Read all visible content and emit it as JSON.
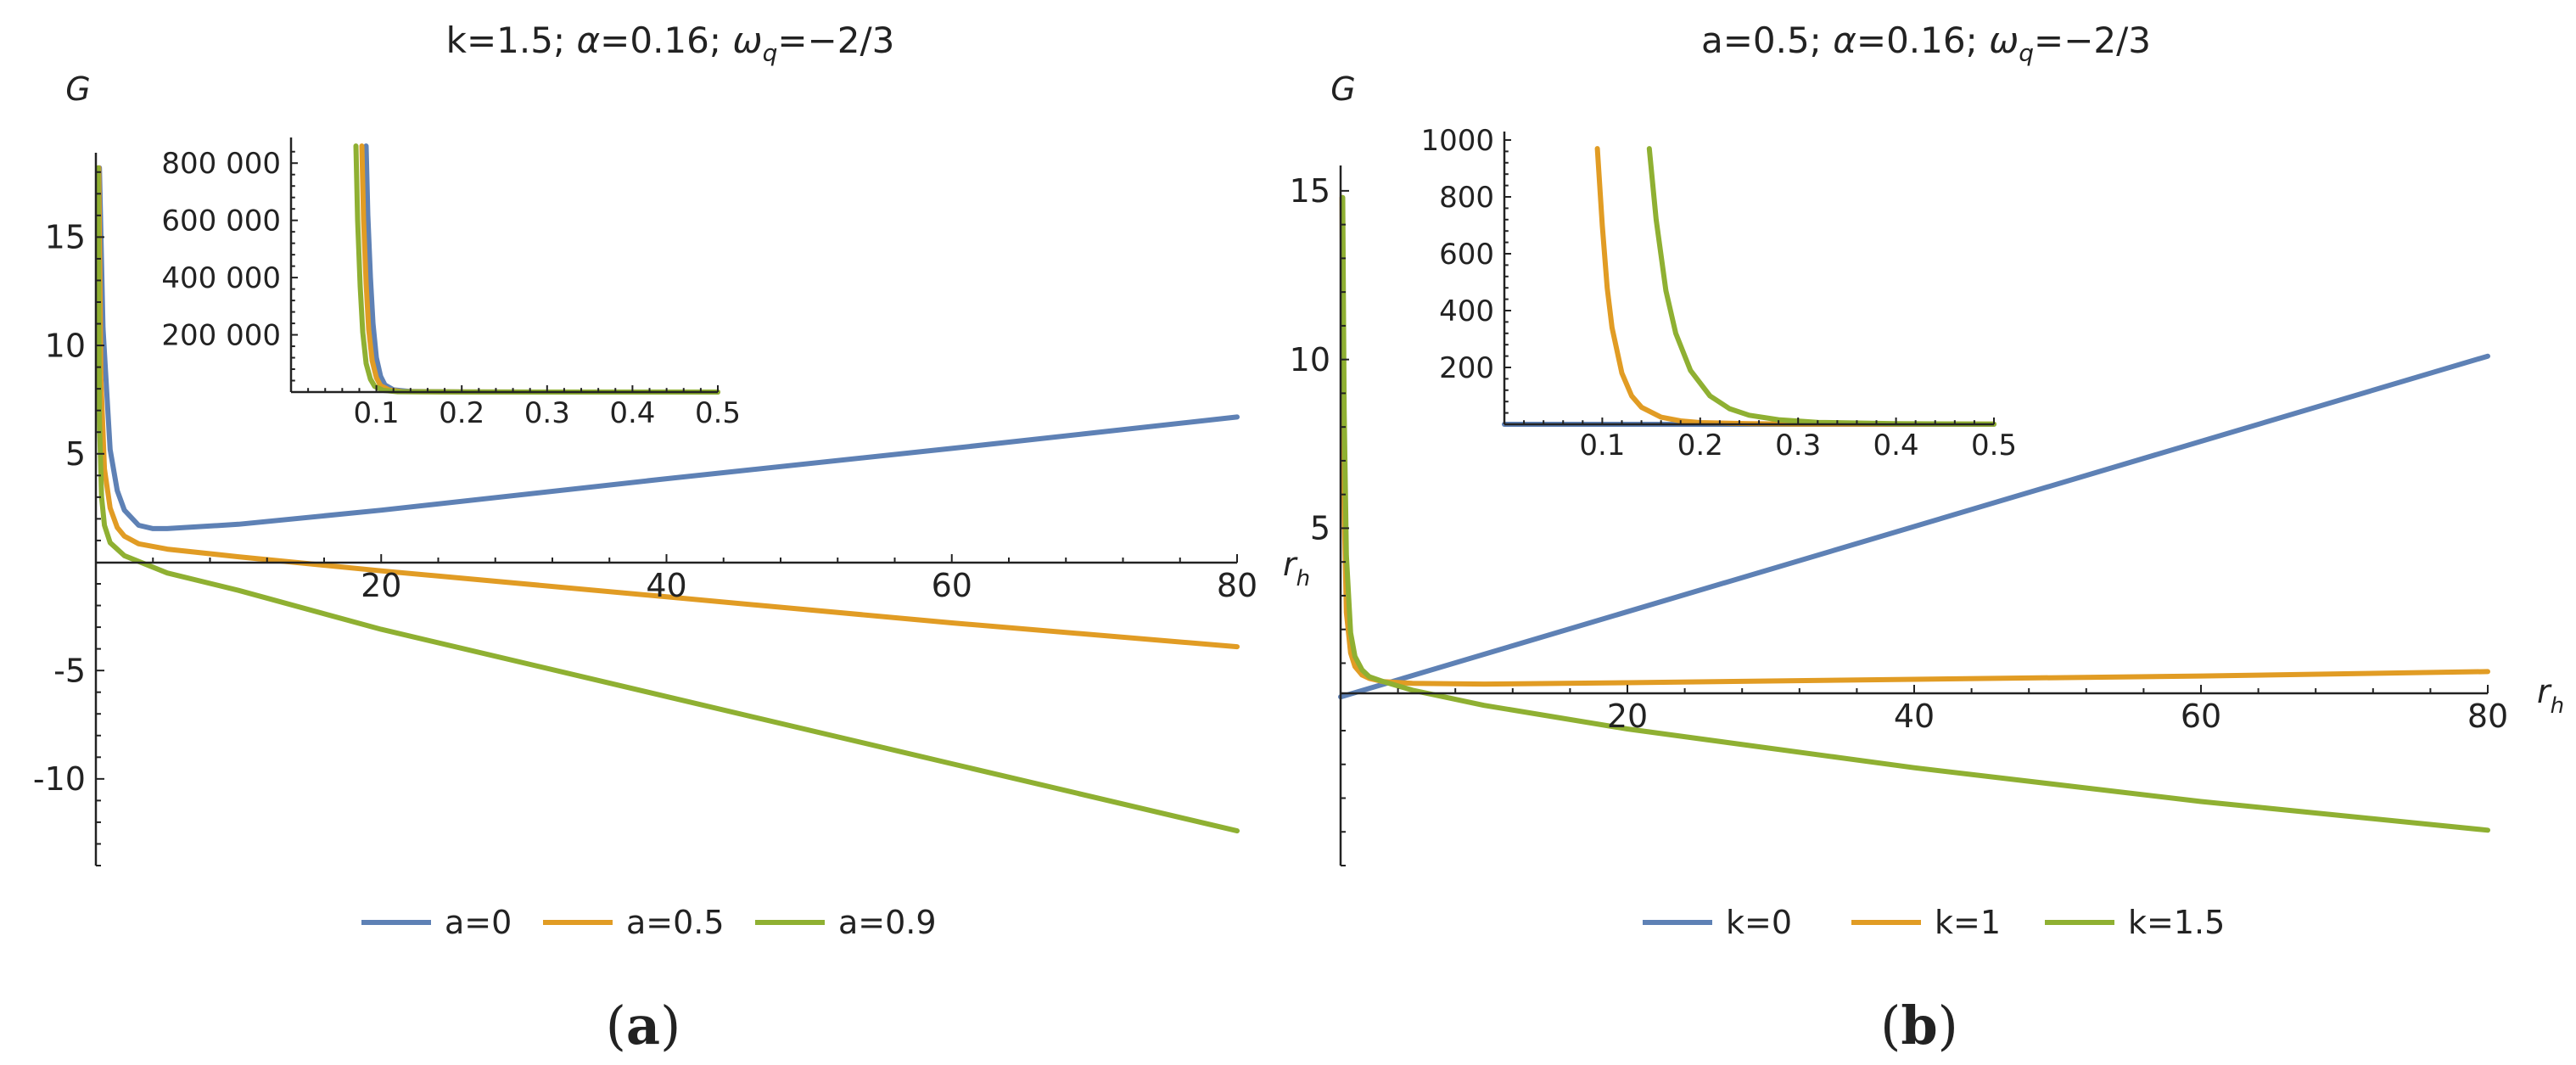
{
  "chart_data": [
    {
      "type": "line",
      "panel_label": {
        "open": "(",
        "letter": "a",
        "close": ")"
      },
      "title": {
        "prefix": "k=1.5; ",
        "alpha_sym": "α",
        "alpha_val": "=0.16; ",
        "omega_sym": "ω",
        "omega_sub": "q",
        "omega_val": "=−2/3"
      },
      "ylabel": "G",
      "xlabel": {
        "base": "r",
        "sub": "h"
      },
      "xlim": [
        0,
        80
      ],
      "ylim": [
        -14,
        18.5
      ],
      "xticks": [
        20,
        40,
        60,
        80
      ],
      "xtick_labels": [
        "20",
        "40",
        "60",
        "80"
      ],
      "yticks": [
        -10,
        -5,
        5,
        10,
        15
      ],
      "ytick_labels": [
        "-10",
        "-5",
        "5",
        "10",
        "15"
      ],
      "series": [
        {
          "name": "a=0",
          "color": "#5e81b5",
          "x": [
            0.25,
            0.5,
            1,
            1.5,
            2,
            3,
            4,
            5,
            10,
            20,
            40,
            60,
            80
          ],
          "y": [
            18.2,
            10.8,
            5.2,
            3.3,
            2.4,
            1.7,
            1.55,
            1.55,
            1.75,
            2.4,
            3.85,
            5.25,
            6.7
          ]
        },
        {
          "name": "a=0.5",
          "color": "#e19c24",
          "x": [
            0.2,
            0.35,
            0.6,
            1,
            1.5,
            2,
            3,
            5,
            10,
            20,
            40,
            60,
            80
          ],
          "y": [
            18.2,
            8.5,
            4.3,
            2.5,
            1.6,
            1.2,
            0.85,
            0.6,
            0.25,
            -0.4,
            -1.6,
            -2.8,
            -3.9
          ]
        },
        {
          "name": "a=0.9",
          "color": "#8fb032",
          "x": [
            0.15,
            0.25,
            0.4,
            0.6,
            1,
            2,
            5,
            10,
            20,
            40,
            60,
            80
          ],
          "y": [
            18.2,
            6.5,
            3.0,
            1.7,
            0.9,
            0.3,
            -0.5,
            -1.3,
            -3.1,
            -6.2,
            -9.3,
            -12.4
          ]
        }
      ],
      "legend": [
        "a=0",
        "a=0.5",
        "a=0.9"
      ],
      "inset": {
        "xlim": [
          0,
          0.5
        ],
        "ylim": [
          0,
          860000
        ],
        "xticks": [
          0.1,
          0.2,
          0.3,
          0.4,
          0.5
        ],
        "xtick_labels": [
          "0.1",
          "0.2",
          "0.3",
          "0.4",
          "0.5"
        ],
        "yticks": [
          200000,
          400000,
          600000,
          800000
        ],
        "ytick_labels": [
          "200 000",
          "400 000",
          "600 000",
          "800 000"
        ],
        "series": [
          {
            "name": "a=0",
            "color": "#5e81b5",
            "x": [
              0.088,
              0.09,
              0.093,
              0.096,
              0.1,
              0.105,
              0.11,
              0.12,
              0.14,
              0.2,
              0.3,
              0.5
            ],
            "y": [
              860000,
              620000,
              400000,
              240000,
              120000,
              55000,
              25000,
              8000,
              2000,
              300,
              100,
              50
            ]
          },
          {
            "name": "a=0.5",
            "color": "#e19c24",
            "x": [
              0.083,
              0.085,
              0.088,
              0.091,
              0.095,
              0.1,
              0.105,
              0.115,
              0.13,
              0.2,
              0.3,
              0.5
            ],
            "y": [
              860000,
              600000,
              380000,
              220000,
              110000,
              50000,
              22000,
              7000,
              1500,
              300,
              100,
              50
            ]
          },
          {
            "name": "a=0.9",
            "color": "#8fb032",
            "x": [
              0.076,
              0.078,
              0.081,
              0.084,
              0.088,
              0.093,
              0.098,
              0.108,
              0.125,
              0.2,
              0.3,
              0.5
            ],
            "y": [
              860000,
              600000,
              370000,
              210000,
              100000,
              45000,
              20000,
              6000,
              1200,
              300,
              100,
              50
            ]
          }
        ]
      }
    },
    {
      "type": "line",
      "panel_label": {
        "open": "(",
        "letter": "b",
        "close": ")"
      },
      "title": {
        "prefix": "a=0.5; ",
        "alpha_sym": "α",
        "alpha_val": "=0.16; ",
        "omega_sym": "ω",
        "omega_sub": "q",
        "omega_val": "=−2/3"
      },
      "ylabel": "G",
      "xlabel": {
        "base": "r",
        "sub": "h"
      },
      "xlim": [
        0,
        80
      ],
      "ylim": [
        -5,
        15.5
      ],
      "xticks": [
        20,
        40,
        60,
        80
      ],
      "xtick_labels": [
        "20",
        "40",
        "60",
        "80"
      ],
      "yticks": [
        5,
        10,
        15
      ],
      "ytick_labels": [
        "5",
        "10",
        "15"
      ],
      "series": [
        {
          "name": "k=0",
          "color": "#5e81b5",
          "x": [
            0,
            80
          ],
          "y": [
            0,
            10.1
          ]
        },
        {
          "name": "k=1",
          "color": "#e19c24",
          "x": [
            0.1,
            0.2,
            0.4,
            0.7,
            1,
            1.5,
            2,
            3,
            5,
            10,
            20,
            40,
            60,
            80
          ],
          "y": [
            14.8,
            6.5,
            2.5,
            1.3,
            0.9,
            0.65,
            0.55,
            0.45,
            0.4,
            0.38,
            0.42,
            0.52,
            0.62,
            0.75
          ]
        },
        {
          "name": "k=1.5",
          "color": "#8fb032",
          "x": [
            0.15,
            0.25,
            0.4,
            0.7,
            1,
            1.5,
            2,
            3,
            5,
            10,
            20,
            40,
            60,
            80
          ],
          "y": [
            14.8,
            8.5,
            4.2,
            1.9,
            1.2,
            0.8,
            0.6,
            0.45,
            0.2,
            -0.25,
            -0.95,
            -2.1,
            -3.1,
            -3.95
          ]
        }
      ],
      "legend": [
        "k=0",
        "k=1",
        "k=1.5"
      ],
      "inset": {
        "xlim": [
          0,
          0.5
        ],
        "ylim": [
          0,
          1000
        ],
        "xticks": [
          0.1,
          0.2,
          0.3,
          0.4,
          0.5
        ],
        "xtick_labels": [
          "0.1",
          "0.2",
          "0.3",
          "0.4",
          "0.5"
        ],
        "yticks": [
          200,
          400,
          600,
          800,
          1000
        ],
        "ytick_labels": [
          "200",
          "400",
          "600",
          "800",
          "1000"
        ],
        "series": [
          {
            "name": "k=0",
            "color": "#5e81b5",
            "x": [
              0,
              0.5
            ],
            "y": [
              0,
              0.06
            ]
          },
          {
            "name": "k=1",
            "color": "#e19c24",
            "x": [
              0.095,
              0.1,
              0.105,
              0.11,
              0.12,
              0.13,
              0.14,
              0.16,
              0.18,
              0.2,
              0.25,
              0.3,
              0.5
            ],
            "y": [
              970,
              700,
              480,
              340,
              180,
              100,
              60,
              25,
              12,
              6,
              2,
              1,
              0.5
            ]
          },
          {
            "name": "k=1.5",
            "color": "#8fb032",
            "x": [
              0.148,
              0.155,
              0.165,
              0.175,
              0.19,
              0.21,
              0.23,
              0.25,
              0.28,
              0.32,
              0.4,
              0.5
            ],
            "y": [
              970,
              720,
              470,
              320,
              190,
              100,
              55,
              32,
              16,
              7,
              2,
              1
            ]
          }
        ]
      }
    }
  ]
}
